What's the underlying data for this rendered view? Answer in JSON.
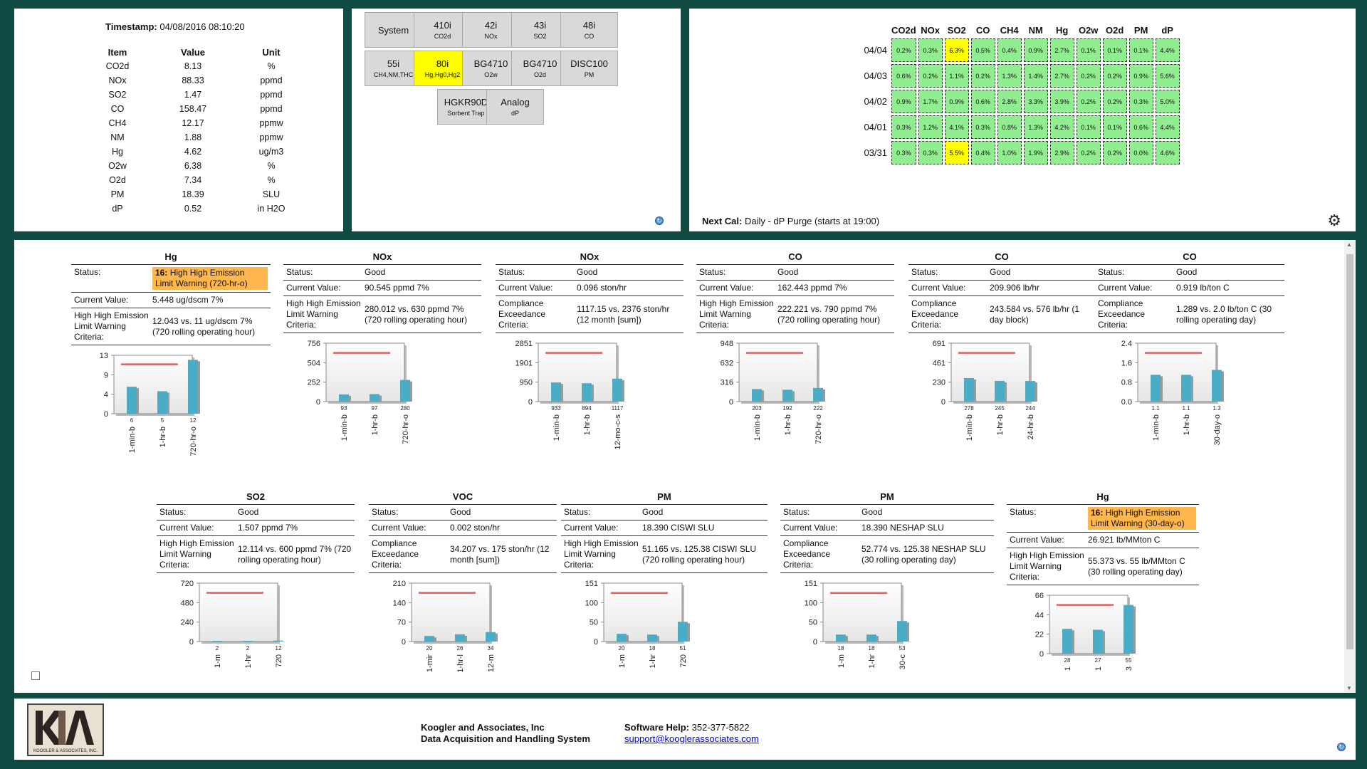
{
  "readings": {
    "timestamp_label": "Timestamp:",
    "timestamp_value": "04/08/2016 08:10:20",
    "headers": [
      "Item",
      "Value",
      "Unit"
    ],
    "rows": [
      [
        "CO2d",
        "8.13",
        "%"
      ],
      [
        "NOx",
        "88.33",
        "ppmd"
      ],
      [
        "SO2",
        "1.47",
        "ppmd"
      ],
      [
        "CO",
        "158.47",
        "ppmd"
      ],
      [
        "CH4",
        "12.17",
        "ppmw"
      ],
      [
        "NM",
        "1.88",
        "ppmw"
      ],
      [
        "Hg",
        "4.62",
        "ug/m3"
      ],
      [
        "O2w",
        "6.38",
        "%"
      ],
      [
        "O2d",
        "7.34",
        "%"
      ],
      [
        "PM",
        "18.39",
        "SLU"
      ],
      [
        "dP",
        "0.52",
        "in H2O"
      ]
    ]
  },
  "analyzers": [
    {
      "name": "System",
      "sub": "",
      "highlight": false,
      "badge": ""
    },
    {
      "name": "410i",
      "sub": "CO2d",
      "highlight": false,
      "badge": ""
    },
    {
      "name": "42i",
      "sub": "NOx",
      "highlight": false,
      "badge": ""
    },
    {
      "name": "43i",
      "sub": "SO2",
      "highlight": false,
      "badge": ""
    },
    {
      "name": "48i",
      "sub": "CO",
      "highlight": false,
      "badge": ""
    },
    {
      "name": "55i",
      "sub": "CH4,NM,THC",
      "highlight": false,
      "badge": ""
    },
    {
      "name": "80i",
      "sub": "Hg,Hg0,Hg2",
      "highlight": true,
      "badge": "1"
    },
    {
      "name": "BG4710",
      "sub": "O2w",
      "highlight": false,
      "badge": ""
    },
    {
      "name": "BG4710",
      "sub": "O2d",
      "highlight": false,
      "badge": ""
    },
    {
      "name": "DISC100",
      "sub": "PM",
      "highlight": false,
      "badge": ""
    },
    {
      "name": "HGKR90D",
      "sub": "Sorbent Trap",
      "highlight": false,
      "badge": ""
    },
    {
      "name": "Analog",
      "sub": "dP",
      "highlight": false,
      "badge": ""
    }
  ],
  "calibration": {
    "headers": [
      "CO2d",
      "NOx",
      "SO2",
      "CO",
      "CH4",
      "NM",
      "Hg",
      "O2w",
      "O2d",
      "PM",
      "dP"
    ],
    "rows": [
      {
        "date": "04/04",
        "cells": [
          "0.2%",
          "0.3%",
          "6.3%",
          "0.5%",
          "0.4%",
          "0.9%",
          "2.7%",
          "0.1%",
          "0.1%",
          "0.1%",
          "4.4%"
        ],
        "flags": [
          0,
          0,
          1,
          0,
          0,
          0,
          0,
          0,
          0,
          0,
          0
        ]
      },
      {
        "date": "04/03",
        "cells": [
          "0.6%",
          "0.2%",
          "1.1%",
          "0.2%",
          "1.3%",
          "1.4%",
          "2.7%",
          "0.2%",
          "0.2%",
          "0.9%",
          "5.6%"
        ],
        "flags": [
          0,
          0,
          0,
          0,
          0,
          0,
          0,
          0,
          0,
          0,
          0
        ]
      },
      {
        "date": "04/02",
        "cells": [
          "0.9%",
          "1.7%",
          "0.9%",
          "0.6%",
          "2.8%",
          "3.3%",
          "3.9%",
          "0.2%",
          "0.2%",
          "0.3%",
          "5.0%"
        ],
        "flags": [
          0,
          0,
          0,
          0,
          0,
          0,
          0,
          0,
          0,
          0,
          0
        ]
      },
      {
        "date": "04/01",
        "cells": [
          "0.3%",
          "1.2%",
          "4.1%",
          "0.3%",
          "0.8%",
          "1.3%",
          "4.2%",
          "0.1%",
          "0.1%",
          "0.6%",
          "4.4%"
        ],
        "flags": [
          0,
          0,
          0,
          0,
          0,
          0,
          0,
          0,
          0,
          0,
          0
        ]
      },
      {
        "date": "03/31",
        "cells": [
          "0.3%",
          "0.3%",
          "5.5%",
          "0.4%",
          "1.0%",
          "1.9%",
          "2.9%",
          "0.2%",
          "0.2%",
          "0.0%",
          "4.6%"
        ],
        "flags": [
          0,
          0,
          1,
          0,
          0,
          0,
          0,
          0,
          0,
          0,
          0
        ]
      }
    ],
    "next_cal_label": "Next Cal:",
    "next_cal_value": "Daily - dP Purge (starts at 19:00)"
  },
  "cards": [
    {
      "title": "Hg",
      "status": "High High Emission Limit Warning (720-hr-o)",
      "status_code": "16:",
      "warn": true,
      "current_label": "Current Value:",
      "current": "5.448 ug/dscm 7%",
      "crit_label": "High High Emission Limit Warning Criteria:",
      "crit": "12.043 vs. 11 ug/dscm 7% (720 rolling operating hour)",
      "chart_data": {
        "type": "bar",
        "yticks": [
          "13",
          "9",
          "4",
          "0"
        ],
        "ymax": 13,
        "limit": 11,
        "values": [
          6,
          5,
          12
        ],
        "value_labels": [
          "6",
          "5",
          "12"
        ],
        "categories": [
          "1-min-b",
          "1-hr-b",
          "720-hr-o"
        ]
      }
    },
    {
      "title": "NOx",
      "status": "Good",
      "status_code": "",
      "warn": false,
      "current_label": "Current Value:",
      "current": "90.545 ppmd 7%",
      "crit_label": "High High Emission Limit Warning Criteria:",
      "crit": "280.012 vs. 630 ppmd 7% (720 rolling operating hour)",
      "chart_data": {
        "type": "bar",
        "yticks": [
          "756",
          "504",
          "252",
          "0"
        ],
        "ymax": 756,
        "limit": 630,
        "values": [
          93,
          97,
          280
        ],
        "value_labels": [
          "93",
          "97",
          "280"
        ],
        "categories": [
          "1-min-b",
          "1-hr-b",
          "720-hr-o"
        ]
      }
    },
    {
      "title": "NOx",
      "status": "Good",
      "status_code": "",
      "warn": false,
      "current_label": "Current Value:",
      "current": "0.096 ston/hr",
      "crit_label": "Compliance Exceedance Criteria:",
      "crit": "1117.15 vs. 2376 ston/hr (12 month [sum])",
      "chart_data": {
        "type": "bar",
        "yticks": [
          "2851",
          "1901",
          "950",
          "0"
        ],
        "ymax": 2851,
        "limit": 2376,
        "values": [
          933,
          894,
          1117
        ],
        "value_labels": [
          "933",
          "894",
          "1117"
        ],
        "categories": [
          "1-min-b",
          "1-hr-b",
          "12-mo-c-s"
        ]
      }
    },
    {
      "title": "CO",
      "status": "Good",
      "status_code": "",
      "warn": false,
      "current_label": "Current Value:",
      "current": "162.443 ppmd 7%",
      "crit_label": "High High Emission Limit Warning Criteria:",
      "crit": "222.221 vs. 790 ppmd 7% (720 rolling operating hour)",
      "chart_data": {
        "type": "bar",
        "yticks": [
          "948",
          "632",
          "316",
          "0"
        ],
        "ymax": 948,
        "limit": 790,
        "values": [
          203,
          192,
          222
        ],
        "value_labels": [
          "203",
          "192",
          "222"
        ],
        "categories": [
          "1-min-b",
          "1-hr-b",
          "720-hr-o"
        ]
      }
    },
    {
      "title": "CO",
      "status": "Good",
      "status_code": "",
      "warn": false,
      "current_label": "Current Value:",
      "current": "209.906 lb/hr",
      "crit_label": "Compliance Exceedance Criteria:",
      "crit": "243.584 vs. 576 lb/hr (1 day block)",
      "chart_data": {
        "type": "bar",
        "yticks": [
          "691",
          "461",
          "230",
          "0"
        ],
        "ymax": 691,
        "limit": 576,
        "values": [
          278,
          245,
          244
        ],
        "value_labels": [
          "278",
          "245",
          "244"
        ],
        "categories": [
          "1-min-b",
          "1-hr-b",
          "24-hr-b"
        ]
      }
    },
    {
      "title": "CO",
      "status": "Good",
      "status_code": "",
      "warn": false,
      "current_label": "Current Value:",
      "current": "0.919 lb/ton C",
      "crit_label": "Compliance Exceedance Criteria:",
      "crit": "1.289 vs. 2.0 lb/ton C (30 rolling operating day)",
      "chart_data": {
        "type": "bar",
        "yticks": [
          "2.4",
          "1.6",
          "0.8",
          "0.0"
        ],
        "ymax": 2.4,
        "limit": 2.0,
        "values": [
          1.1,
          1.1,
          1.3
        ],
        "value_labels": [
          "1.1",
          "1.1",
          "1.3"
        ],
        "categories": [
          "1-min-b",
          "1-hr-b",
          "30-day-o"
        ]
      }
    },
    {
      "title": "SO2",
      "status": "Good",
      "status_code": "",
      "warn": false,
      "current_label": "Current Value:",
      "current": "1.507 ppmd 7%",
      "crit_label": "High High Emission Limit Warning Criteria:",
      "crit": "12.114 vs. 600 ppmd 7% (720 rolling operating hour)",
      "chart_data": {
        "type": "bar",
        "yticks": [
          "720",
          "480",
          "240",
          "0"
        ],
        "ymax": 720,
        "limit": 600,
        "values": [
          2,
          2,
          12
        ],
        "value_labels": [
          "2",
          "2",
          "12"
        ],
        "categories": [
          "1-m",
          "1-hr",
          "720"
        ]
      }
    },
    {
      "title": "VOC",
      "status": "Good",
      "status_code": "",
      "warn": false,
      "current_label": "Current Value:",
      "current": "0.002 ston/hr",
      "crit_label": "Compliance Exceedance Criteria:",
      "crit": "34.207 vs. 175 ston/hr (12 month [sum])",
      "chart_data": {
        "type": "bar",
        "yticks": [
          "210",
          "140",
          "70",
          "0"
        ],
        "ymax": 210,
        "limit": 175,
        "values": [
          20,
          26,
          34
        ],
        "value_labels": [
          "20",
          "26",
          "34"
        ],
        "categories": [
          "1-mir",
          "1-hr-l",
          "12-m"
        ]
      }
    },
    {
      "title": "PM",
      "status": "Good",
      "status_code": "",
      "warn": false,
      "current_label": "Current Value:",
      "current": "18.390 CISWI SLU",
      "crit_label": "High High Emission Limit Warning Criteria:",
      "crit": "51.165 vs. 125.38 CISWI SLU (720 rolling operating hour)",
      "chart_data": {
        "type": "bar",
        "yticks": [
          "151",
          "100",
          "50",
          "0"
        ],
        "ymax": 151,
        "limit": 125.38,
        "values": [
          20,
          18,
          51
        ],
        "value_labels": [
          "20",
          "18",
          "51"
        ],
        "categories": [
          "1-m",
          "1-hr",
          "720"
        ]
      }
    },
    {
      "title": "PM",
      "status": "Good",
      "status_code": "",
      "warn": false,
      "current_label": "Current Value:",
      "current": "18.390 NESHAP SLU",
      "crit_label": "Compliance Exceedance Criteria:",
      "crit": "52.774 vs. 125.38 NESHAP SLU (30 rolling operating day)",
      "chart_data": {
        "type": "bar",
        "yticks": [
          "151",
          "100",
          "50",
          "0"
        ],
        "ymax": 151,
        "limit": 125.38,
        "values": [
          18,
          18,
          53
        ],
        "value_labels": [
          "18",
          "18",
          "53"
        ],
        "categories": [
          "1-m",
          "1-hr",
          "30-c"
        ]
      }
    },
    {
      "title": "Hg",
      "status": "High High Emission Limit Warning (30-day-o)",
      "status_code": "16:",
      "warn": true,
      "current_label": "Current Value:",
      "current": "26.921 lb/MMton C",
      "crit_label": "High High Emission Limit Warning Criteria:",
      "crit": "55.373 vs. 55 lb/MMton C (30 rolling operating day)",
      "chart_data": {
        "type": "bar",
        "yticks": [
          "66",
          "44",
          "22",
          "0"
        ],
        "ymax": 66,
        "limit": 55,
        "values": [
          28,
          27,
          55
        ],
        "value_labels": [
          "28",
          "27",
          "55"
        ],
        "categories": [
          "1",
          "1",
          "3"
        ]
      }
    }
  ],
  "footer": {
    "logo_text": "KOOGLER & ASSOCIATES, INC.",
    "company": "Koogler and Associates, Inc",
    "system": "Data Acquisition and Handling System",
    "help_label": "Software Help:",
    "help_phone": "352-377-5822",
    "help_email": "support@koogler​associates.com"
  },
  "colors": {
    "bg": "#0f4a43",
    "bar": "#4bacc6",
    "limit": "#e06060",
    "warn": "#ffb74d",
    "cal_ok": "#90ee90",
    "cal_flag": "#ffff00",
    "analyzer_hl": "#ffff00"
  }
}
